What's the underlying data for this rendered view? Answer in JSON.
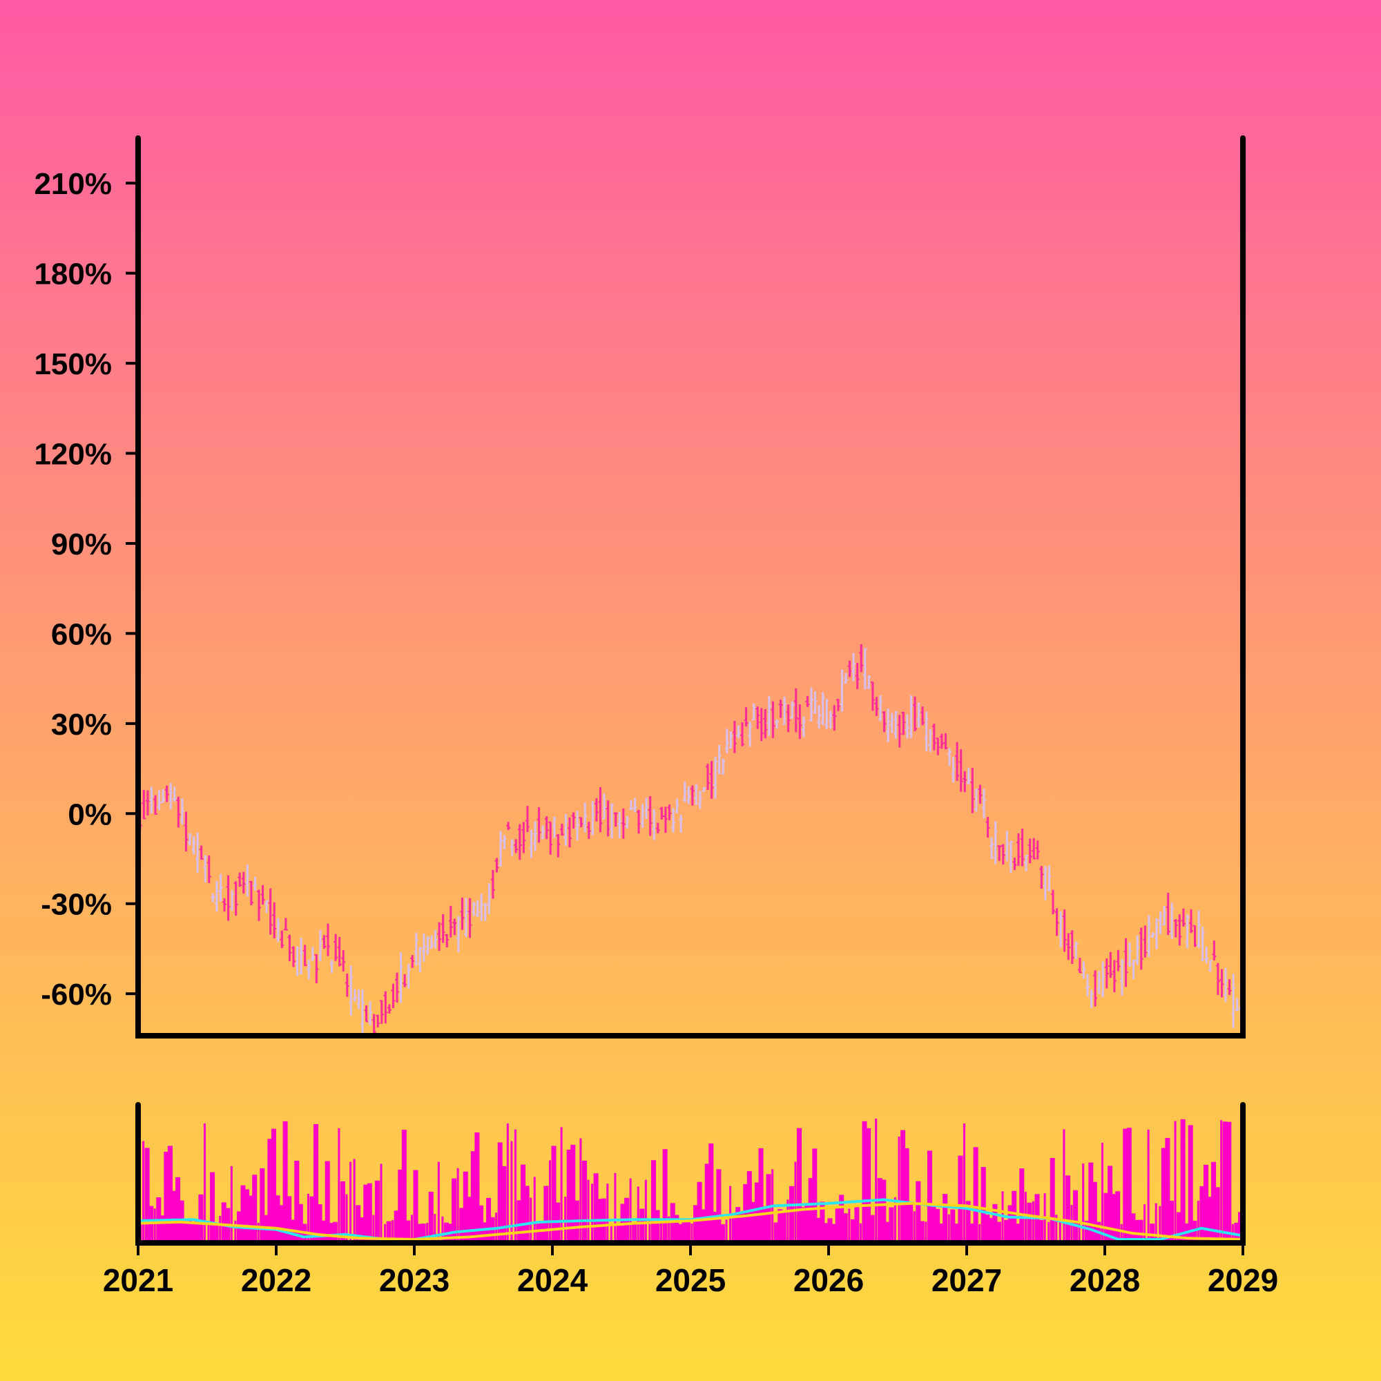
{
  "chart_data": {
    "type": "ohlc",
    "x_axis": {
      "type": "time",
      "range": [
        "2021",
        "2029"
      ],
      "tick_labels": [
        "2021",
        "2022",
        "2023",
        "2024",
        "2025",
        "2026",
        "2027",
        "2028",
        "2029"
      ]
    },
    "y_axis": {
      "range": [
        -0.74,
        2.25
      ],
      "format": "percent",
      "tick_values": [
        -0.6,
        -0.3,
        0,
        0.3,
        0.6,
        0.9,
        1.2,
        1.5,
        1.8,
        2.1
      ],
      "tick_labels": [
        "-60%",
        "-30%",
        "0%",
        "30%",
        "60%",
        "90%",
        "120%",
        "150%",
        "180%",
        "210%"
      ]
    },
    "grid": false,
    "candles": {
      "up_color": "#d8c0ee",
      "down_color": "#ff2a9a",
      "anchors": [
        [
          "2021-01",
          0.0
        ],
        [
          "2021-04",
          0.05
        ],
        [
          "2021-08",
          -0.28
        ],
        [
          "2021-11",
          -0.25
        ],
        [
          "2022-03",
          -0.5
        ],
        [
          "2022-06",
          -0.45
        ],
        [
          "2022-09",
          -0.72
        ],
        [
          "2022-11",
          -0.62
        ],
        [
          "2023-01",
          -0.47
        ],
        [
          "2023-04",
          -0.4
        ],
        [
          "2023-07",
          -0.32
        ],
        [
          "2023-09",
          -0.08
        ],
        [
          "2024-02",
          -0.05
        ],
        [
          "2024-05",
          -0.01
        ],
        [
          "2024-11",
          -0.02
        ],
        [
          "2025-02",
          0.08
        ],
        [
          "2025-06",
          0.3
        ],
        [
          "2025-09",
          0.32
        ],
        [
          "2026-01",
          0.34
        ],
        [
          "2026-04",
          0.52
        ],
        [
          "2026-06",
          0.3
        ],
        [
          "2026-09",
          0.32
        ],
        [
          "2027-02",
          0.05
        ],
        [
          "2027-04",
          -0.15
        ],
        [
          "2027-07",
          -0.1
        ],
        [
          "2027-09",
          -0.35
        ],
        [
          "2027-12",
          -0.58
        ],
        [
          "2028-03",
          -0.5
        ],
        [
          "2028-06",
          -0.35
        ],
        [
          "2028-09",
          -0.4
        ],
        [
          "2028-12",
          -0.62
        ]
      ]
    },
    "volume_panel": {
      "bar_color": "#ff00c8",
      "moving_averages": [
        {
          "color": "#2ee6f0",
          "profile": [
            [
              2021.0,
              0.15
            ],
            [
              2021.4,
              0.16
            ],
            [
              2021.7,
              0.1
            ],
            [
              2022.0,
              0.08
            ],
            [
              2022.2,
              0.02
            ],
            [
              2022.5,
              0.04
            ],
            [
              2022.8,
              0.0
            ],
            [
              2023.0,
              0.0
            ],
            [
              2023.3,
              0.06
            ],
            [
              2023.6,
              0.09
            ],
            [
              2023.9,
              0.14
            ],
            [
              2024.2,
              0.15
            ],
            [
              2024.6,
              0.16
            ],
            [
              2025.0,
              0.16
            ],
            [
              2025.3,
              0.2
            ],
            [
              2025.6,
              0.27
            ],
            [
              2026.0,
              0.29
            ],
            [
              2026.4,
              0.32
            ],
            [
              2026.7,
              0.28
            ],
            [
              2027.0,
              0.25
            ],
            [
              2027.3,
              0.18
            ],
            [
              2027.6,
              0.17
            ],
            [
              2027.9,
              0.08
            ],
            [
              2028.1,
              0.0
            ],
            [
              2028.4,
              0.0
            ],
            [
              2028.7,
              0.09
            ],
            [
              2029.0,
              0.03
            ]
          ]
        },
        {
          "color": "#ffd21e",
          "profile": [
            [
              2021.0,
              0.13
            ],
            [
              2021.3,
              0.14
            ],
            [
              2021.6,
              0.12
            ],
            [
              2022.0,
              0.09
            ],
            [
              2022.3,
              0.04
            ],
            [
              2022.6,
              0.01
            ],
            [
              2023.0,
              0.0
            ],
            [
              2023.4,
              0.02
            ],
            [
              2023.8,
              0.06
            ],
            [
              2024.2,
              0.1
            ],
            [
              2024.6,
              0.13
            ],
            [
              2025.0,
              0.15
            ],
            [
              2025.4,
              0.19
            ],
            [
              2025.8,
              0.24
            ],
            [
              2026.2,
              0.27
            ],
            [
              2026.6,
              0.29
            ],
            [
              2027.0,
              0.27
            ],
            [
              2027.4,
              0.2
            ],
            [
              2027.8,
              0.14
            ],
            [
              2028.2,
              0.05
            ],
            [
              2028.6,
              0.01
            ],
            [
              2029.0,
              0.0
            ]
          ]
        }
      ]
    }
  }
}
